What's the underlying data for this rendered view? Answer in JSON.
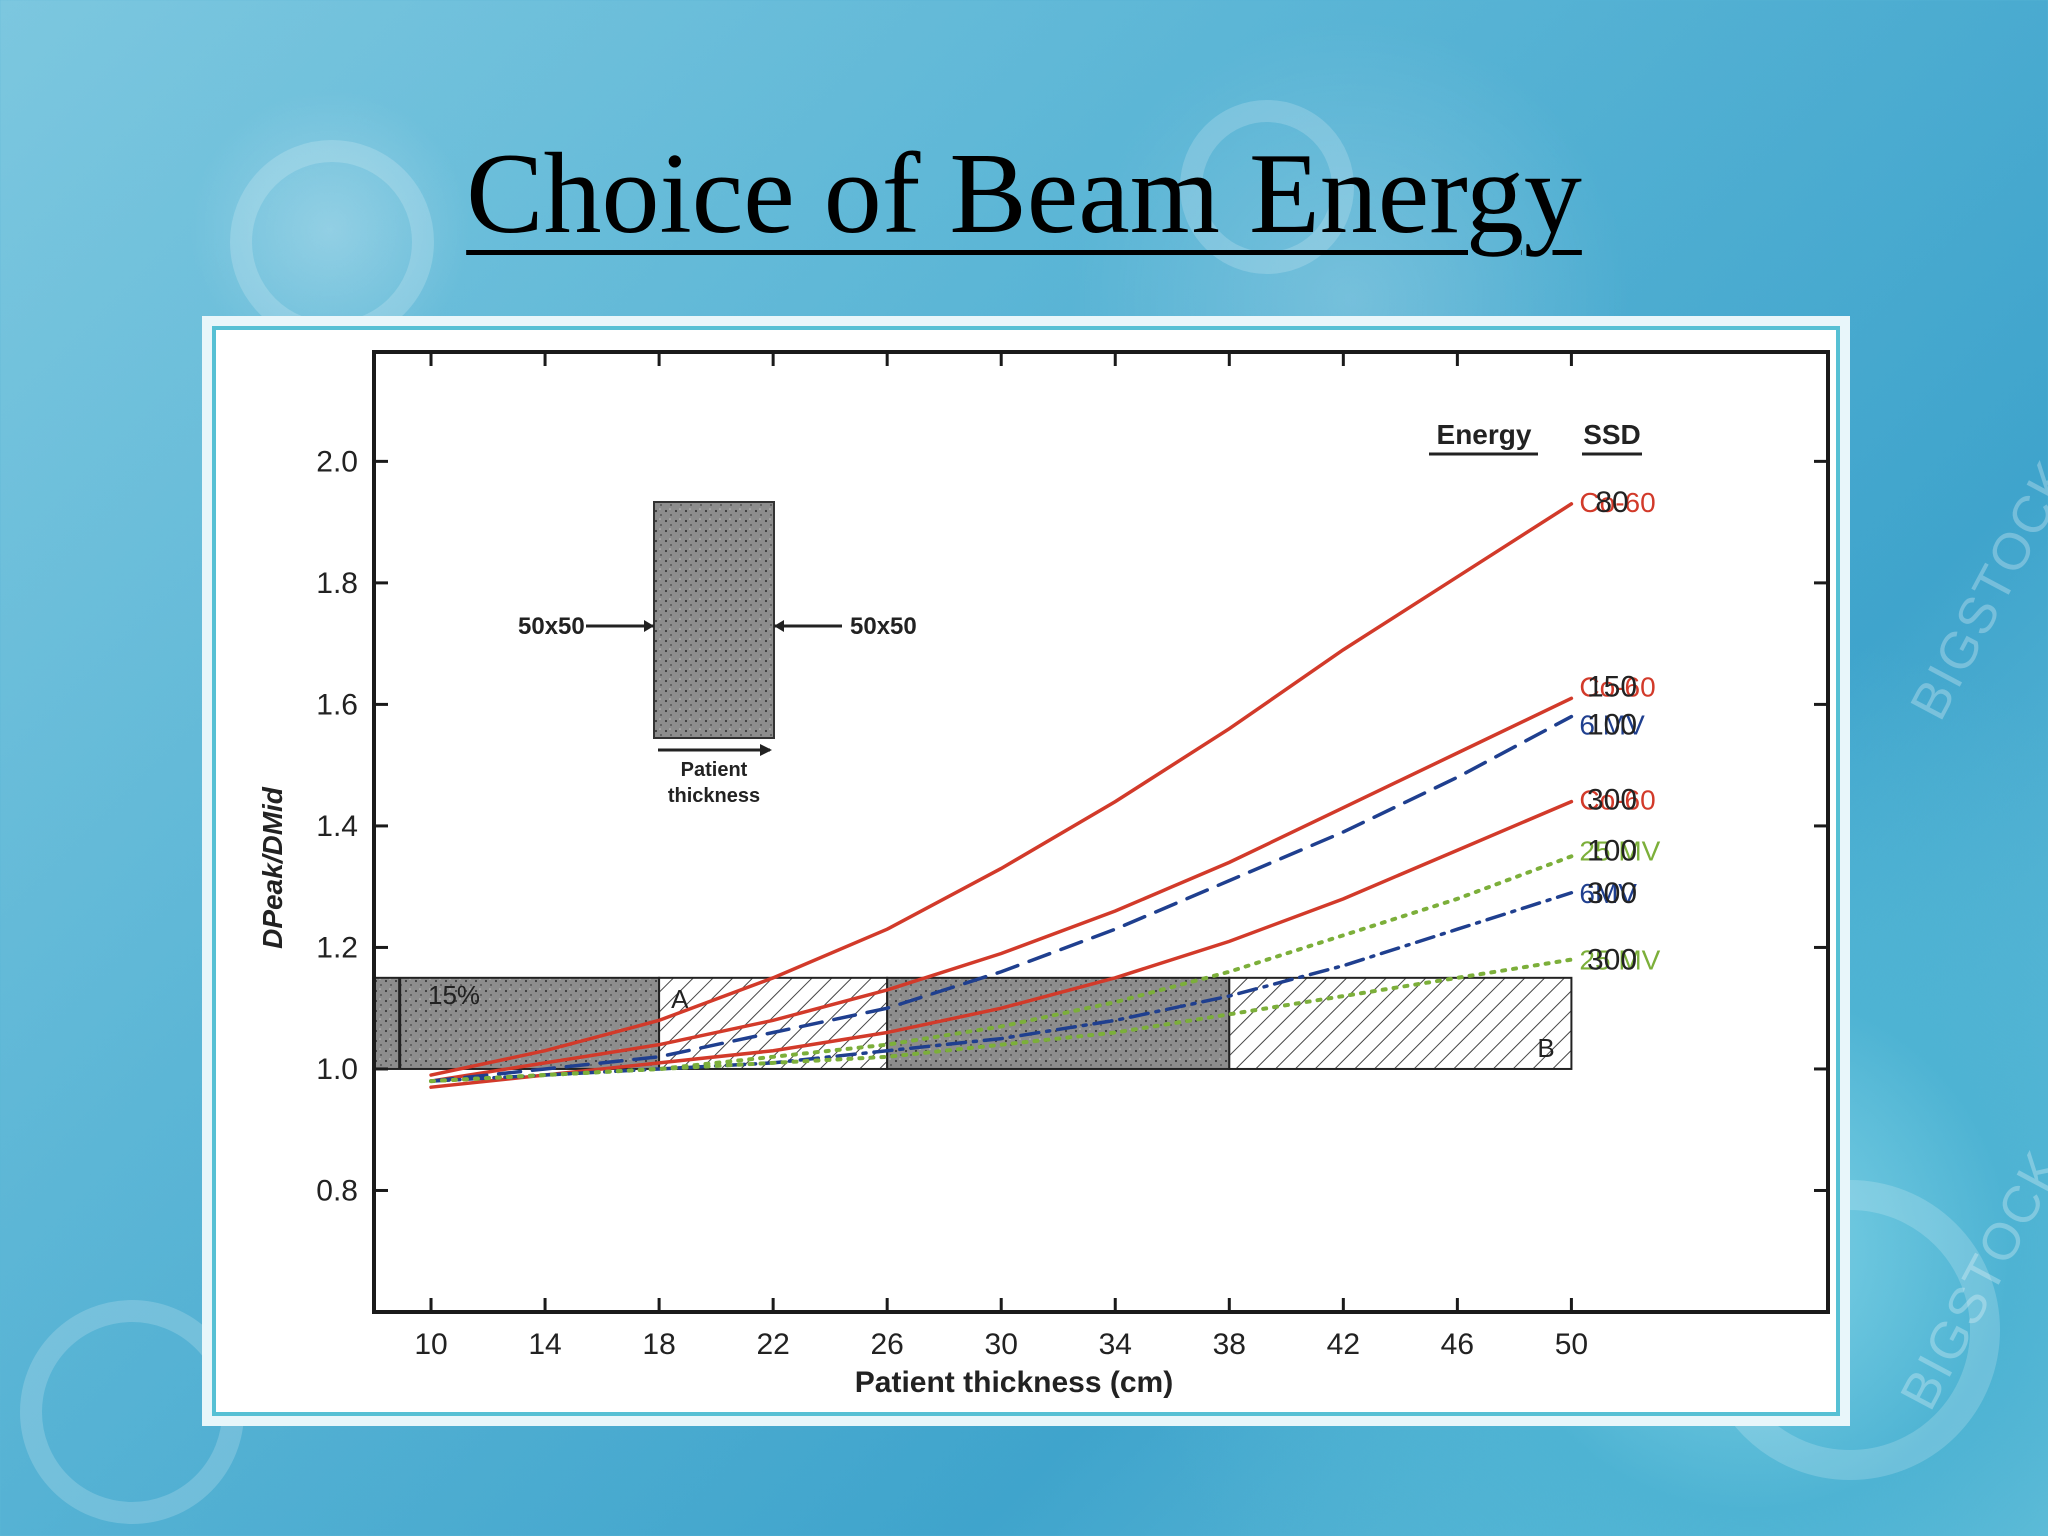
{
  "slide": {
    "title": "Choice of Beam Energy",
    "watermark_text": "BIGSTOCK"
  },
  "chart_data": {
    "type": "line",
    "xlabel": "Patient thickness (cm)",
    "ylabel": "DPeak/DMid",
    "x_ticks": [
      10,
      14,
      18,
      22,
      26,
      30,
      34,
      38,
      42,
      46,
      50
    ],
    "y_ticks": [
      0.8,
      1.0,
      1.2,
      1.4,
      1.6,
      1.8,
      2.0
    ],
    "y_tick_labels": [
      "0.8",
      "1.0",
      "1.2",
      "1.4",
      "1.6",
      "1.8",
      "2.0"
    ],
    "xlim": [
      8,
      59
    ],
    "ylim": [
      0.6,
      2.18
    ],
    "legend_headers": {
      "energy": "Energy",
      "ssd": "SSD"
    },
    "series": [
      {
        "name": "Co-60",
        "ssd": "80",
        "style": "solid",
        "color": "#d23a2a",
        "x": [
          10,
          14,
          18,
          22,
          26,
          30,
          34,
          38,
          42,
          46,
          50
        ],
        "y": [
          0.99,
          1.03,
          1.08,
          1.15,
          1.23,
          1.33,
          1.44,
          1.56,
          1.69,
          1.81,
          1.93
        ]
      },
      {
        "name": "Co-60",
        "ssd": "150",
        "style": "solid",
        "color": "#d23a2a",
        "x": [
          10,
          14,
          18,
          22,
          26,
          30,
          34,
          38,
          42,
          46,
          50
        ],
        "y": [
          0.98,
          1.01,
          1.04,
          1.08,
          1.13,
          1.19,
          1.26,
          1.34,
          1.43,
          1.52,
          1.61
        ]
      },
      {
        "name": "6 MV",
        "ssd": "100",
        "style": "dashed",
        "color": "#1f3f8f",
        "x": [
          10,
          14,
          18,
          22,
          26,
          30,
          34,
          38,
          42,
          46,
          50
        ],
        "y": [
          0.98,
          1.0,
          1.02,
          1.06,
          1.1,
          1.16,
          1.23,
          1.31,
          1.39,
          1.48,
          1.58
        ]
      },
      {
        "name": "Co-60",
        "ssd": "300",
        "style": "solid",
        "color": "#d23a2a",
        "x": [
          10,
          14,
          18,
          22,
          26,
          30,
          34,
          38,
          42,
          46,
          50
        ],
        "y": [
          0.97,
          0.99,
          1.01,
          1.03,
          1.06,
          1.1,
          1.15,
          1.21,
          1.28,
          1.36,
          1.44
        ]
      },
      {
        "name": "25 MV",
        "ssd": "100",
        "style": "dotted",
        "color": "#7caf3a",
        "x": [
          10,
          14,
          18,
          22,
          26,
          30,
          34,
          38,
          42,
          46,
          50
        ],
        "y": [
          0.98,
          0.99,
          1.0,
          1.02,
          1.04,
          1.07,
          1.11,
          1.16,
          1.22,
          1.28,
          1.35
        ]
      },
      {
        "name": "6MV",
        "ssd": "300",
        "style": "dashdot",
        "color": "#1f3f8f",
        "x": [
          10,
          14,
          18,
          22,
          26,
          30,
          34,
          38,
          42,
          46,
          50
        ],
        "y": [
          0.98,
          0.99,
          1.0,
          1.01,
          1.03,
          1.05,
          1.08,
          1.12,
          1.17,
          1.23,
          1.29
        ]
      },
      {
        "name": "25 MV",
        "ssd": "300",
        "style": "dotted",
        "color": "#7caf3a",
        "x": [
          10,
          14,
          18,
          22,
          26,
          30,
          34,
          38,
          42,
          46,
          50
        ],
        "y": [
          0.98,
          0.99,
          1.0,
          1.01,
          1.02,
          1.04,
          1.06,
          1.09,
          1.12,
          1.15,
          1.18
        ]
      }
    ],
    "regions": [
      {
        "label": "",
        "x": [
          8,
          18
        ],
        "y": [
          1.0,
          1.15
        ],
        "fill": "stipple"
      },
      {
        "label": "A",
        "x": [
          18,
          26
        ],
        "y": [
          1.0,
          1.15
        ],
        "fill": "hatch"
      },
      {
        "label": "",
        "x": [
          26,
          38
        ],
        "y": [
          1.0,
          1.15
        ],
        "fill": "stipple"
      },
      {
        "label": "B",
        "x": [
          38,
          50
        ],
        "y": [
          1.0,
          1.15
        ],
        "fill": "hatch"
      }
    ],
    "band_label": "15%",
    "inset": {
      "field_left": "50x50",
      "field_right": "50x50",
      "caption_line1": "Patient",
      "caption_line2": "thickness"
    }
  }
}
